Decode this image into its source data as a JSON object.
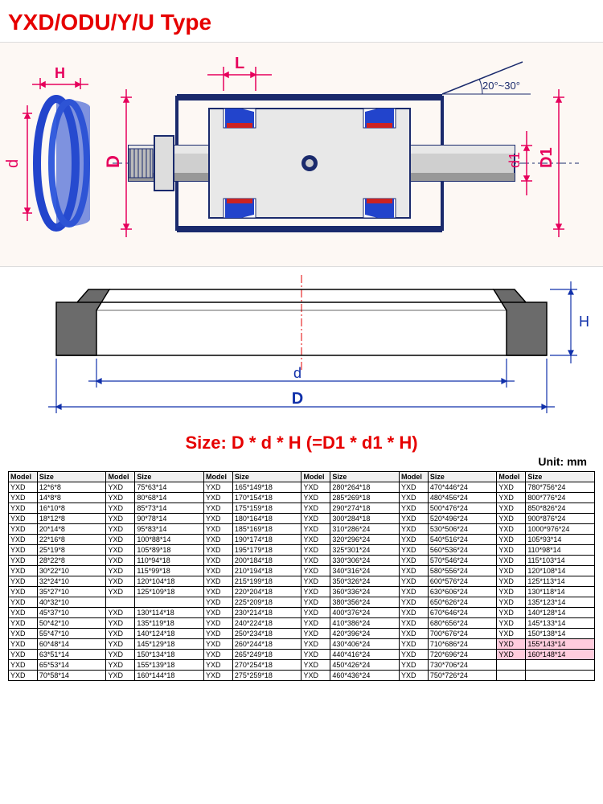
{
  "title": "YXD/ODU/Y/U Type",
  "diagram_top": {
    "labels": {
      "H": "H",
      "d": "d",
      "D": "D",
      "L": "L",
      "d1": "d1",
      "D1": "D1"
    },
    "angle_label": "20°~30°",
    "colors": {
      "outline": "#1a2a6c",
      "seal_blue": "#2244cc",
      "seal_red": "#cc2222",
      "shaft_grey": "#a8a8a8",
      "label_magenta": "#e6005c",
      "bg": "#fdf8f4"
    }
  },
  "cross_section": {
    "labels": {
      "d": "d",
      "D": "D",
      "H": "H"
    },
    "colors": {
      "fill": "#6b6b6b",
      "dim": "#1030aa",
      "axis": "#e60000"
    }
  },
  "size_formula": "Size: D * d * H (=D1 * d1 * H)",
  "unit_label": "Unit: mm",
  "table": {
    "headers": [
      "Model",
      "Size",
      "Model",
      "Size",
      "Model",
      "Size",
      "Model",
      "Size",
      "Model",
      "Size",
      "Model",
      "Size"
    ],
    "rows": [
      [
        "YXD",
        "12*6*8",
        "YXD",
        "75*63*14",
        "YXD",
        "165*149*18",
        "YXD",
        "280*264*18",
        "YXD",
        "470*446*24",
        "YXD",
        "780*756*24"
      ],
      [
        "YXD",
        "14*8*8",
        "YXD",
        "80*68*14",
        "YXD",
        "170*154*18",
        "YXD",
        "285*269*18",
        "YXD",
        "480*456*24",
        "YXD",
        "800*776*24"
      ],
      [
        "YXD",
        "16*10*8",
        "YXD",
        "85*73*14",
        "YXD",
        "175*159*18",
        "YXD",
        "290*274*18",
        "YXD",
        "500*476*24",
        "YXD",
        "850*826*24"
      ],
      [
        "YXD",
        "18*12*8",
        "YXD",
        "90*78*14",
        "YXD",
        "180*164*18",
        "YXD",
        "300*284*18",
        "YXD",
        "520*496*24",
        "YXD",
        "900*876*24"
      ],
      [
        "YXD",
        "20*14*8",
        "YXD",
        "95*83*14",
        "YXD",
        "185*169*18",
        "YXD",
        "310*286*24",
        "YXD",
        "530*506*24",
        "YXD",
        "1000*976*24"
      ],
      [
        "YXD",
        "22*16*8",
        "YXD",
        "100*88*14",
        "YXD",
        "190*174*18",
        "YXD",
        "320*296*24",
        "YXD",
        "540*516*24",
        "YXD",
        "105*93*14"
      ],
      [
        "YXD",
        "25*19*8",
        "YXD",
        "105*89*18",
        "YXD",
        "195*179*18",
        "YXD",
        "325*301*24",
        "YXD",
        "560*536*24",
        "YXD",
        "110*98*14"
      ],
      [
        "YXD",
        "28*22*8",
        "YXD",
        "110*94*18",
        "YXD",
        "200*184*18",
        "YXD",
        "330*306*24",
        "YXD",
        "570*546*24",
        "YXD",
        "115*103*14"
      ],
      [
        "YXD",
        "30*22*10",
        "YXD",
        "115*99*18",
        "YXD",
        "210*194*18",
        "YXD",
        "340*316*24",
        "YXD",
        "580*556*24",
        "YXD",
        "120*108*14"
      ],
      [
        "YXD",
        "32*24*10",
        "YXD",
        "120*104*18",
        "YXD",
        "215*199*18",
        "YXD",
        "350*326*24",
        "YXD",
        "600*576*24",
        "YXD",
        "125*113*14"
      ],
      [
        "YXD",
        "35*27*10",
        "YXD",
        "125*109*18",
        "YXD",
        "220*204*18",
        "YXD",
        "360*336*24",
        "YXD",
        "630*606*24",
        "YXD",
        "130*118*14"
      ],
      [
        "YXD",
        "40*32*10",
        "",
        "",
        "YXD",
        "225*209*18",
        "YXD",
        "380*356*24",
        "YXD",
        "650*626*24",
        "YXD",
        "135*123*14"
      ],
      [
        "YXD",
        "45*37*10",
        "YXD",
        "130*114*18",
        "YXD",
        "230*214*18",
        "YXD",
        "400*376*24",
        "YXD",
        "670*646*24",
        "YXD",
        "140*128*14"
      ],
      [
        "YXD",
        "50*42*10",
        "YXD",
        "135*119*18",
        "YXD",
        "240*224*18",
        "YXD",
        "410*386*24",
        "YXD",
        "680*656*24",
        "YXD",
        "145*133*14"
      ],
      [
        "YXD",
        "55*47*10",
        "YXD",
        "140*124*18",
        "YXD",
        "250*234*18",
        "YXD",
        "420*396*24",
        "YXD",
        "700*676*24",
        "YXD",
        "150*138*14"
      ],
      [
        "YXD",
        "60*48*14",
        "YXD",
        "145*129*18",
        "YXD",
        "260*244*18",
        "YXD",
        "430*406*24",
        "YXD",
        "710*686*24",
        "YXD",
        "155*143*14"
      ],
      [
        "YXD",
        "63*51*14",
        "YXD",
        "150*134*18",
        "YXD",
        "265*249*18",
        "YXD",
        "440*416*24",
        "YXD",
        "720*696*24",
        "YXD",
        "160*148*14"
      ],
      [
        "YXD",
        "65*53*14",
        "YXD",
        "155*139*18",
        "YXD",
        "270*254*18",
        "YXD",
        "450*426*24",
        "YXD",
        "730*706*24",
        "",
        ""
      ],
      [
        "YXD",
        "70*58*14",
        "YXD",
        "160*144*18",
        "YXD",
        "275*259*18",
        "YXD",
        "460*436*24",
        "YXD",
        "750*726*24",
        "",
        ""
      ]
    ],
    "highlight_cells": [
      [
        15,
        10
      ],
      [
        15,
        11
      ],
      [
        16,
        10
      ],
      [
        16,
        11
      ]
    ]
  }
}
